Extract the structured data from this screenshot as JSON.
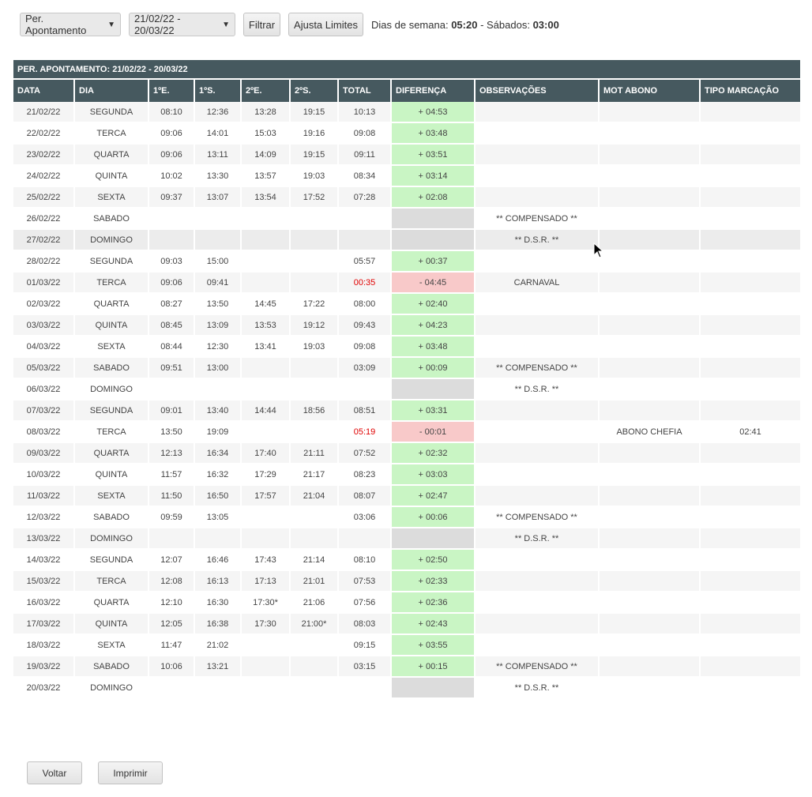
{
  "toolbar": {
    "periodo_select": "Per. Apontamento",
    "range_select": "21/02/22 - 20/03/22",
    "filtrar_label": "Filtrar",
    "ajusta_label": "Ajusta Limites",
    "dias_semana_label": "Dias de semana:",
    "dias_semana_value": "05:20",
    "sabados_label": "- Sábados:",
    "sabados_value": "03:00"
  },
  "table": {
    "caption": "PER. APONTAMENTO: 21/02/22 - 20/03/22",
    "headers": [
      "DATA",
      "DIA",
      "1ºE.",
      "1ºS.",
      "2ºE.",
      "2ºS.",
      "TOTAL",
      "DIFERENÇA",
      "OBSERVAÇÕES",
      "MOT ABONO",
      "TIPO MARCAÇÃO"
    ],
    "rows": [
      {
        "data": "21/02/22",
        "dia": "SEGUNDA",
        "e1": "08:10",
        "s1": "12:36",
        "e2": "13:28",
        "s2": "19:15",
        "total": "10:13",
        "diferenca": "+ 04:53",
        "obs": "",
        "mot": "",
        "tipo": ""
      },
      {
        "data": "22/02/22",
        "dia": "TERCA",
        "e1": "09:06",
        "s1": "14:01",
        "e2": "15:03",
        "s2": "19:16",
        "total": "09:08",
        "diferenca": "+ 03:48",
        "obs": "",
        "mot": "",
        "tipo": ""
      },
      {
        "data": "23/02/22",
        "dia": "QUARTA",
        "e1": "09:06",
        "s1": "13:11",
        "e2": "14:09",
        "s2": "19:15",
        "total": "09:11",
        "diferenca": "+ 03:51",
        "obs": "",
        "mot": "",
        "tipo": ""
      },
      {
        "data": "24/02/22",
        "dia": "QUINTA",
        "e1": "10:02",
        "s1": "13:30",
        "e2": "13:57",
        "s2": "19:03",
        "total": "08:34",
        "diferenca": "+ 03:14",
        "obs": "",
        "mot": "",
        "tipo": ""
      },
      {
        "data": "25/02/22",
        "dia": "SEXTA",
        "e1": "09:37",
        "s1": "13:07",
        "e2": "13:54",
        "s2": "17:52",
        "total": "07:28",
        "diferenca": "+ 02:08",
        "obs": "",
        "mot": "",
        "tipo": ""
      },
      {
        "data": "26/02/22",
        "dia": "SABADO",
        "e1": "",
        "s1": "",
        "e2": "",
        "s2": "",
        "total": "",
        "diferenca": "",
        "obs": "** COMPENSADO **",
        "mot": "",
        "tipo": ""
      },
      {
        "data": "27/02/22",
        "dia": "DOMINGO",
        "e1": "",
        "s1": "",
        "e2": "",
        "s2": "",
        "total": "",
        "diferenca": "",
        "obs": "** D.S.R. **",
        "mot": "",
        "tipo": ""
      },
      {
        "data": "28/02/22",
        "dia": "SEGUNDA",
        "e1": "09:03",
        "s1": "15:00",
        "e2": "",
        "s2": "",
        "total": "05:57",
        "diferenca": "+ 00:37",
        "obs": "",
        "mot": "",
        "tipo": ""
      },
      {
        "data": "01/03/22",
        "dia": "TERCA",
        "e1": "09:06",
        "s1": "09:41",
        "e2": "",
        "s2": "",
        "total": "00:35",
        "diferenca": "- 04:45",
        "obs": "CARNAVAL",
        "mot": "",
        "tipo": ""
      },
      {
        "data": "02/03/22",
        "dia": "QUARTA",
        "e1": "08:27",
        "s1": "13:50",
        "e2": "14:45",
        "s2": "17:22",
        "total": "08:00",
        "diferenca": "+ 02:40",
        "obs": "",
        "mot": "",
        "tipo": ""
      },
      {
        "data": "03/03/22",
        "dia": "QUINTA",
        "e1": "08:45",
        "s1": "13:09",
        "e2": "13:53",
        "s2": "19:12",
        "total": "09:43",
        "diferenca": "+ 04:23",
        "obs": "",
        "mot": "",
        "tipo": ""
      },
      {
        "data": "04/03/22",
        "dia": "SEXTA",
        "e1": "08:44",
        "s1": "12:30",
        "e2": "13:41",
        "s2": "19:03",
        "total": "09:08",
        "diferenca": "+ 03:48",
        "obs": "",
        "mot": "",
        "tipo": ""
      },
      {
        "data": "05/03/22",
        "dia": "SABADO",
        "e1": "09:51",
        "s1": "13:00",
        "e2": "",
        "s2": "",
        "total": "03:09",
        "diferenca": "+ 00:09",
        "obs": "** COMPENSADO **",
        "mot": "",
        "tipo": ""
      },
      {
        "data": "06/03/22",
        "dia": "DOMINGO",
        "e1": "",
        "s1": "",
        "e2": "",
        "s2": "",
        "total": "",
        "diferenca": "",
        "obs": "** D.S.R. **",
        "mot": "",
        "tipo": ""
      },
      {
        "data": "07/03/22",
        "dia": "SEGUNDA",
        "e1": "09:01",
        "s1": "13:40",
        "e2": "14:44",
        "s2": "18:56",
        "total": "08:51",
        "diferenca": "+ 03:31",
        "obs": "",
        "mot": "",
        "tipo": ""
      },
      {
        "data": "08/03/22",
        "dia": "TERCA",
        "e1": "13:50",
        "s1": "19:09",
        "e2": "",
        "s2": "",
        "total": "05:19",
        "diferenca": "- 00:01",
        "obs": "",
        "mot": "ABONO CHEFIA",
        "tipo": "02:41"
      },
      {
        "data": "09/03/22",
        "dia": "QUARTA",
        "e1": "12:13",
        "s1": "16:34",
        "e2": "17:40",
        "s2": "21:11",
        "total": "07:52",
        "diferenca": "+ 02:32",
        "obs": "",
        "mot": "",
        "tipo": ""
      },
      {
        "data": "10/03/22",
        "dia": "QUINTA",
        "e1": "11:57",
        "s1": "16:32",
        "e2": "17:29",
        "s2": "21:17",
        "total": "08:23",
        "diferenca": "+ 03:03",
        "obs": "",
        "mot": "",
        "tipo": ""
      },
      {
        "data": "11/03/22",
        "dia": "SEXTA",
        "e1": "11:50",
        "s1": "16:50",
        "e2": "17:57",
        "s2": "21:04",
        "total": "08:07",
        "diferenca": "+ 02:47",
        "obs": "",
        "mot": "",
        "tipo": ""
      },
      {
        "data": "12/03/22",
        "dia": "SABADO",
        "e1": "09:59",
        "s1": "13:05",
        "e2": "",
        "s2": "",
        "total": "03:06",
        "diferenca": "+ 00:06",
        "obs": "** COMPENSADO **",
        "mot": "",
        "tipo": ""
      },
      {
        "data": "13/03/22",
        "dia": "DOMINGO",
        "e1": "",
        "s1": "",
        "e2": "",
        "s2": "",
        "total": "",
        "diferenca": "",
        "obs": "** D.S.R. **",
        "mot": "",
        "tipo": ""
      },
      {
        "data": "14/03/22",
        "dia": "SEGUNDA",
        "e1": "12:07",
        "s1": "16:46",
        "e2": "17:43",
        "s2": "21:14",
        "total": "08:10",
        "diferenca": "+ 02:50",
        "obs": "",
        "mot": "",
        "tipo": ""
      },
      {
        "data": "15/03/22",
        "dia": "TERCA",
        "e1": "12:08",
        "s1": "16:13",
        "e2": "17:13",
        "s2": "21:01",
        "total": "07:53",
        "diferenca": "+ 02:33",
        "obs": "",
        "mot": "",
        "tipo": ""
      },
      {
        "data": "16/03/22",
        "dia": "QUARTA",
        "e1": "12:10",
        "s1": "16:30",
        "e2": "17:30*",
        "s2": "21:06",
        "total": "07:56",
        "diferenca": "+ 02:36",
        "obs": "",
        "mot": "",
        "tipo": ""
      },
      {
        "data": "17/03/22",
        "dia": "QUINTA",
        "e1": "12:05",
        "s1": "16:38",
        "e2": "17:30",
        "s2": "21:00*",
        "total": "08:03",
        "diferenca": "+ 02:43",
        "obs": "",
        "mot": "",
        "tipo": ""
      },
      {
        "data": "18/03/22",
        "dia": "SEXTA",
        "e1": "11:47",
        "s1": "21:02",
        "e2": "",
        "s2": "",
        "total": "09:15",
        "diferenca": "+ 03:55",
        "obs": "",
        "mot": "",
        "tipo": ""
      },
      {
        "data": "19/03/22",
        "dia": "SABADO",
        "e1": "10:06",
        "s1": "13:21",
        "e2": "",
        "s2": "",
        "total": "03:15",
        "diferenca": "+ 00:15",
        "obs": "** COMPENSADO **",
        "mot": "",
        "tipo": ""
      },
      {
        "data": "20/03/22",
        "dia": "DOMINGO",
        "e1": "",
        "s1": "",
        "e2": "",
        "s2": "",
        "total": "",
        "diferenca": "",
        "obs": "** D.S.R. **",
        "mot": "",
        "tipo": ""
      }
    ]
  },
  "footer": {
    "voltar_label": "Voltar",
    "imprimir_label": "Imprimir"
  }
}
